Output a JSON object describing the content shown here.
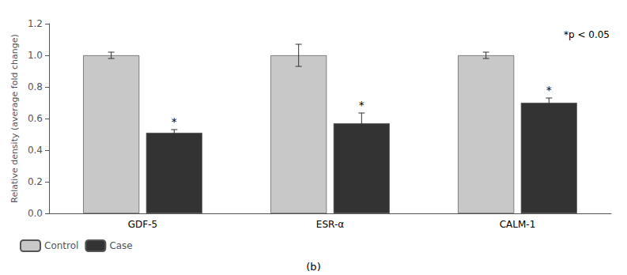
{
  "chart_data": {
    "type": "bar",
    "categories": [
      "GDF-5",
      "ESR-α",
      "CALM-1"
    ],
    "series": [
      {
        "name": "Control",
        "color": "#c8c8c8",
        "values": [
          1.0,
          1.0,
          1.0
        ],
        "errors": [
          0.02,
          0.07,
          0.02
        ]
      },
      {
        "name": "Case",
        "color": "#333333",
        "values": [
          0.51,
          0.57,
          0.7
        ],
        "errors": [
          0.02,
          0.065,
          0.03
        ],
        "annotations": [
          "*",
          "*",
          "*"
        ]
      }
    ],
    "ylabel": "Relative density (average fold change)",
    "ylim": [
      0,
      1.2
    ],
    "yticks": [
      {
        "value": 0,
        "label": "0.0"
      },
      0.2,
      0.4,
      0.6,
      0.8,
      {
        "value": 1.0,
        "label": "1.0"
      },
      1.2
    ],
    "annotations": [
      "*p < 0.05"
    ],
    "label": "(b)",
    "legend": "lower left",
    "grid": false
  }
}
